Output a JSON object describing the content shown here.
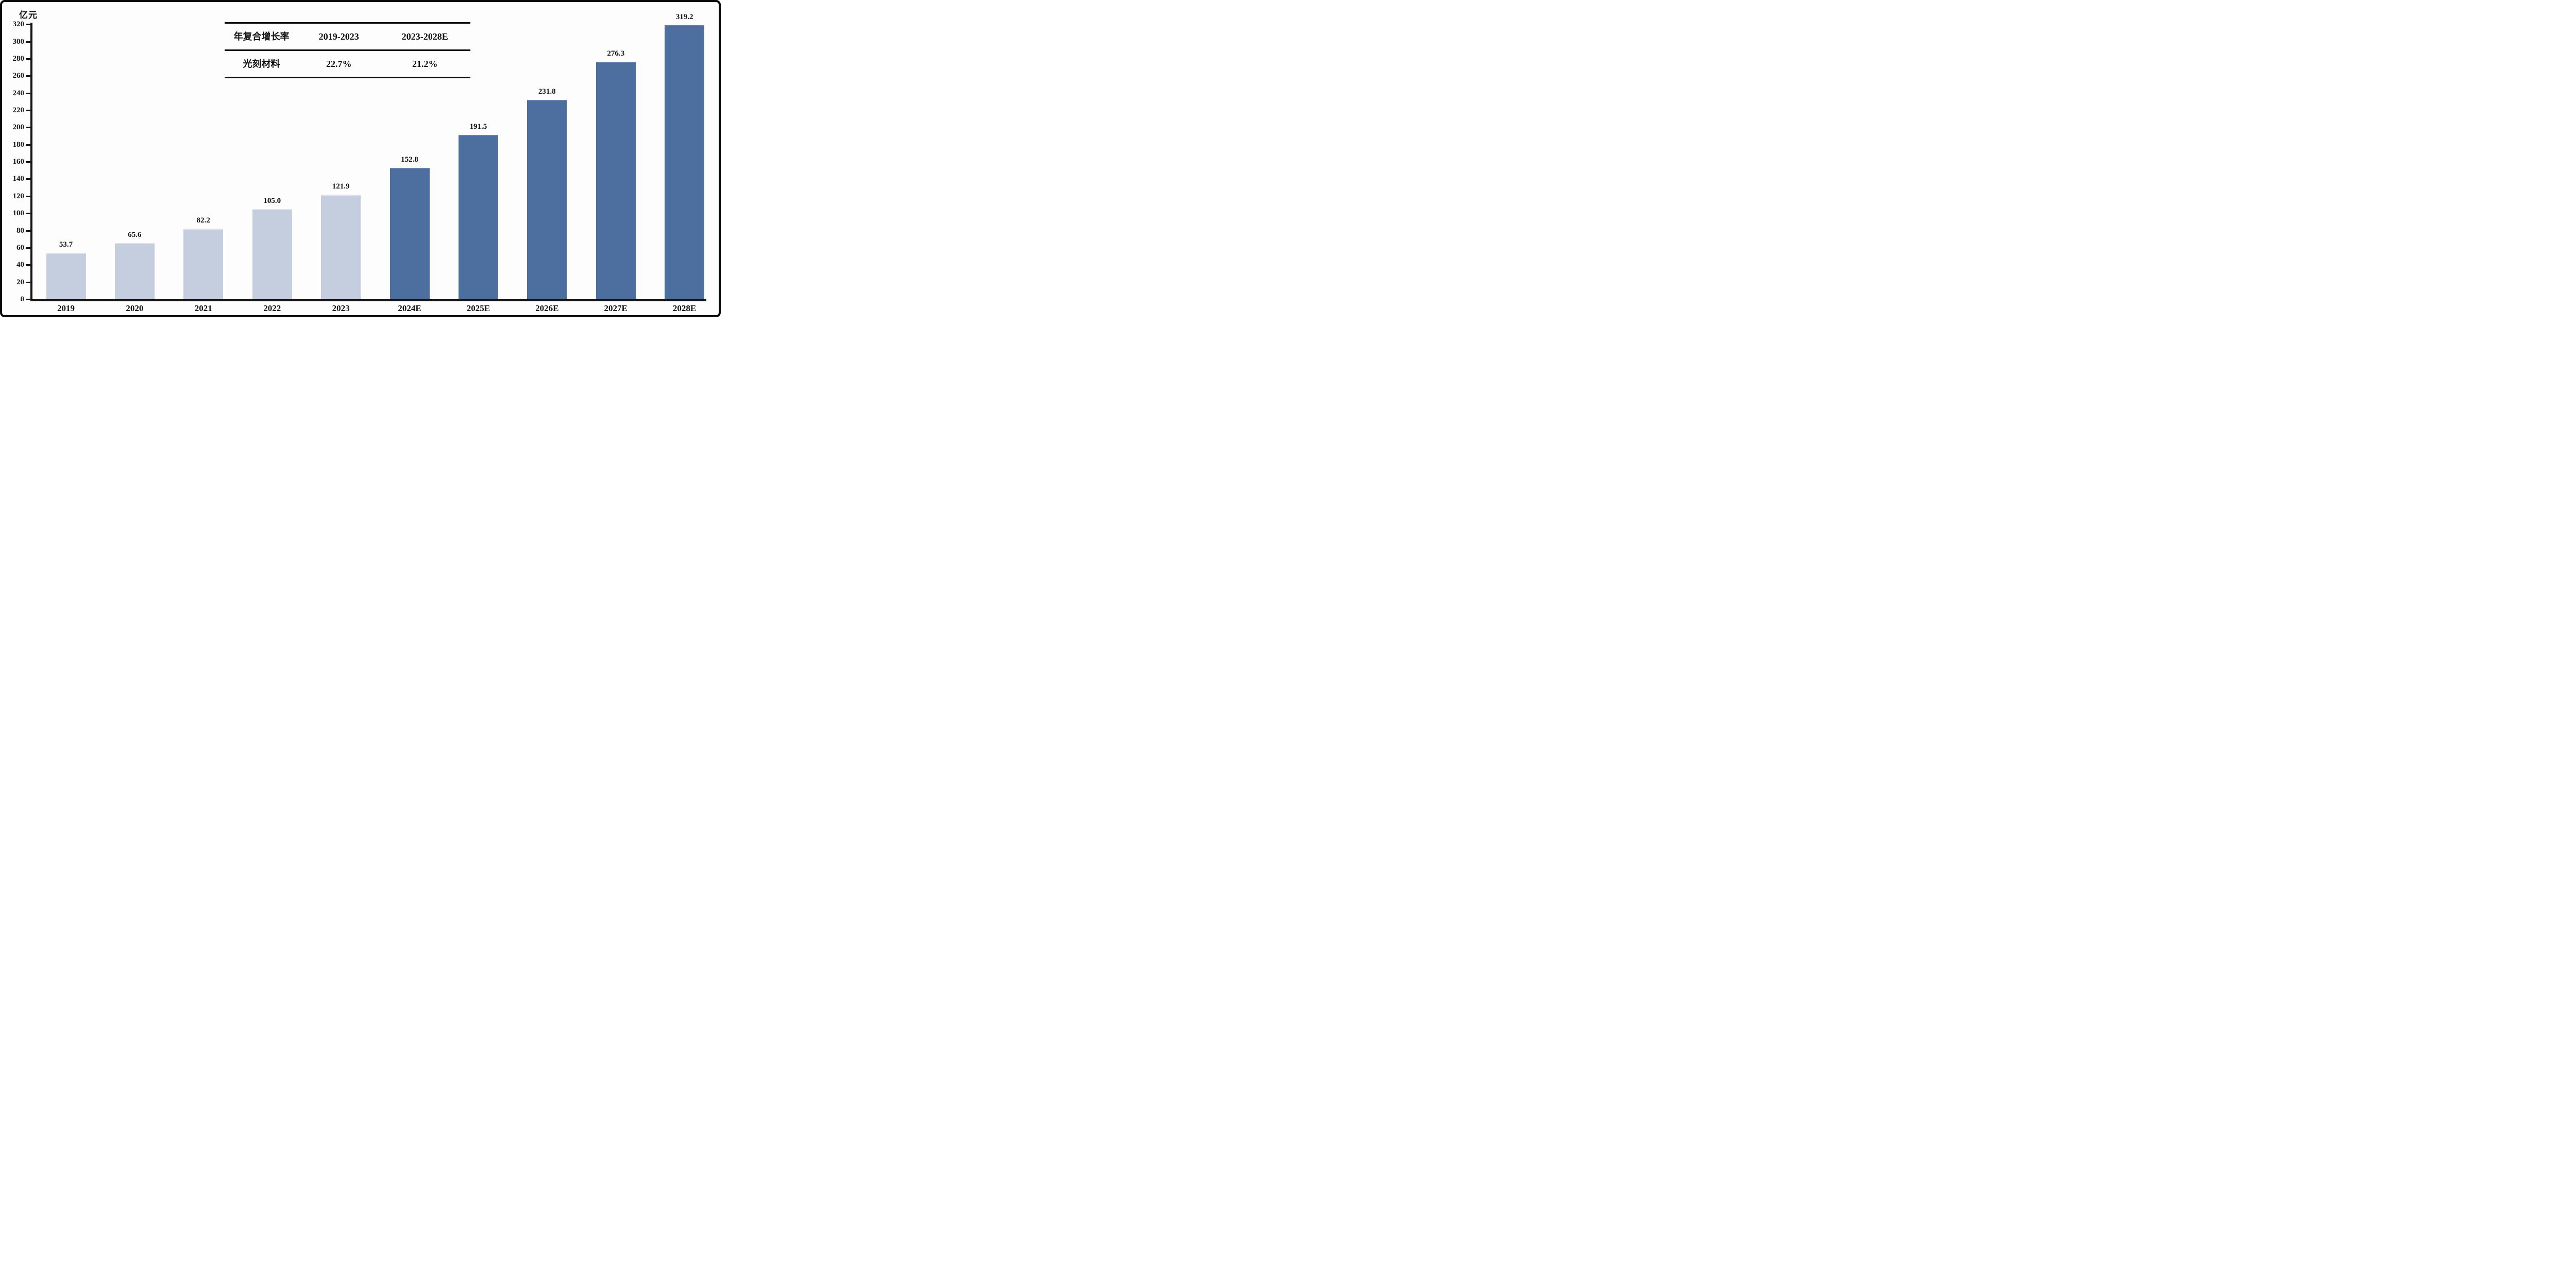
{
  "chart": {
    "unit_label": "亿元"
  },
  "chart_data": {
    "type": "bar",
    "title": "",
    "ylabel": "亿元",
    "xlabel": "",
    "categories": [
      "2019",
      "2020",
      "2021",
      "2022",
      "2023",
      "2024E",
      "2025E",
      "2026E",
      "2027E",
      "2028E"
    ],
    "values": [
      53.7,
      65.6,
      82.2,
      105.0,
      121.9,
      152.8,
      191.5,
      231.8,
      276.3,
      319.2
    ],
    "ylim": [
      0,
      320
    ],
    "ytick_step": 20,
    "grid": false,
    "legend": null,
    "forecast_start_index": 5,
    "colors": {
      "historical_bar": "#c4cede",
      "forecast_bar": "#4d6fa0",
      "axis": "#141414",
      "text": "#111111"
    }
  },
  "table": {
    "header": [
      "年复合增长率",
      "2019-2023",
      "2023-2028E"
    ],
    "rows": [
      [
        "光刻材料",
        "22.7%",
        "21.2%"
      ]
    ]
  }
}
